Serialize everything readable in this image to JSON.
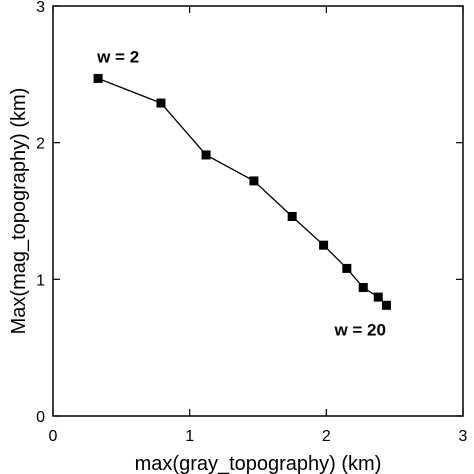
{
  "chart_data": {
    "type": "line",
    "title": "",
    "xlabel": "max(gray_topography) (km)",
    "ylabel": "Max(mag_topography) (km)",
    "xlim": [
      0,
      3
    ],
    "ylim": [
      0,
      3
    ],
    "xticks": [
      0,
      1,
      2,
      3
    ],
    "yticks": [
      0,
      1,
      2,
      3
    ],
    "xtick_labels": [
      "0",
      "1",
      "2",
      "3"
    ],
    "ytick_labels": [
      "0",
      "1",
      "2",
      "3"
    ],
    "grid": false,
    "series": [
      {
        "marker": "square",
        "color": "#000000",
        "x": [
          0.33,
          0.79,
          1.12,
          1.47,
          1.75,
          1.98,
          2.15,
          2.27,
          2.38,
          2.44
        ],
        "y": [
          2.47,
          2.29,
          1.91,
          1.72,
          1.46,
          1.25,
          1.08,
          0.94,
          0.87,
          0.81
        ]
      }
    ],
    "annotations": [
      {
        "text": "w = 2",
        "x": 0.33,
        "y": 2.47,
        "position": "above"
      },
      {
        "text": "w = 20",
        "x": 2.44,
        "y": 0.81,
        "position": "below"
      }
    ]
  }
}
